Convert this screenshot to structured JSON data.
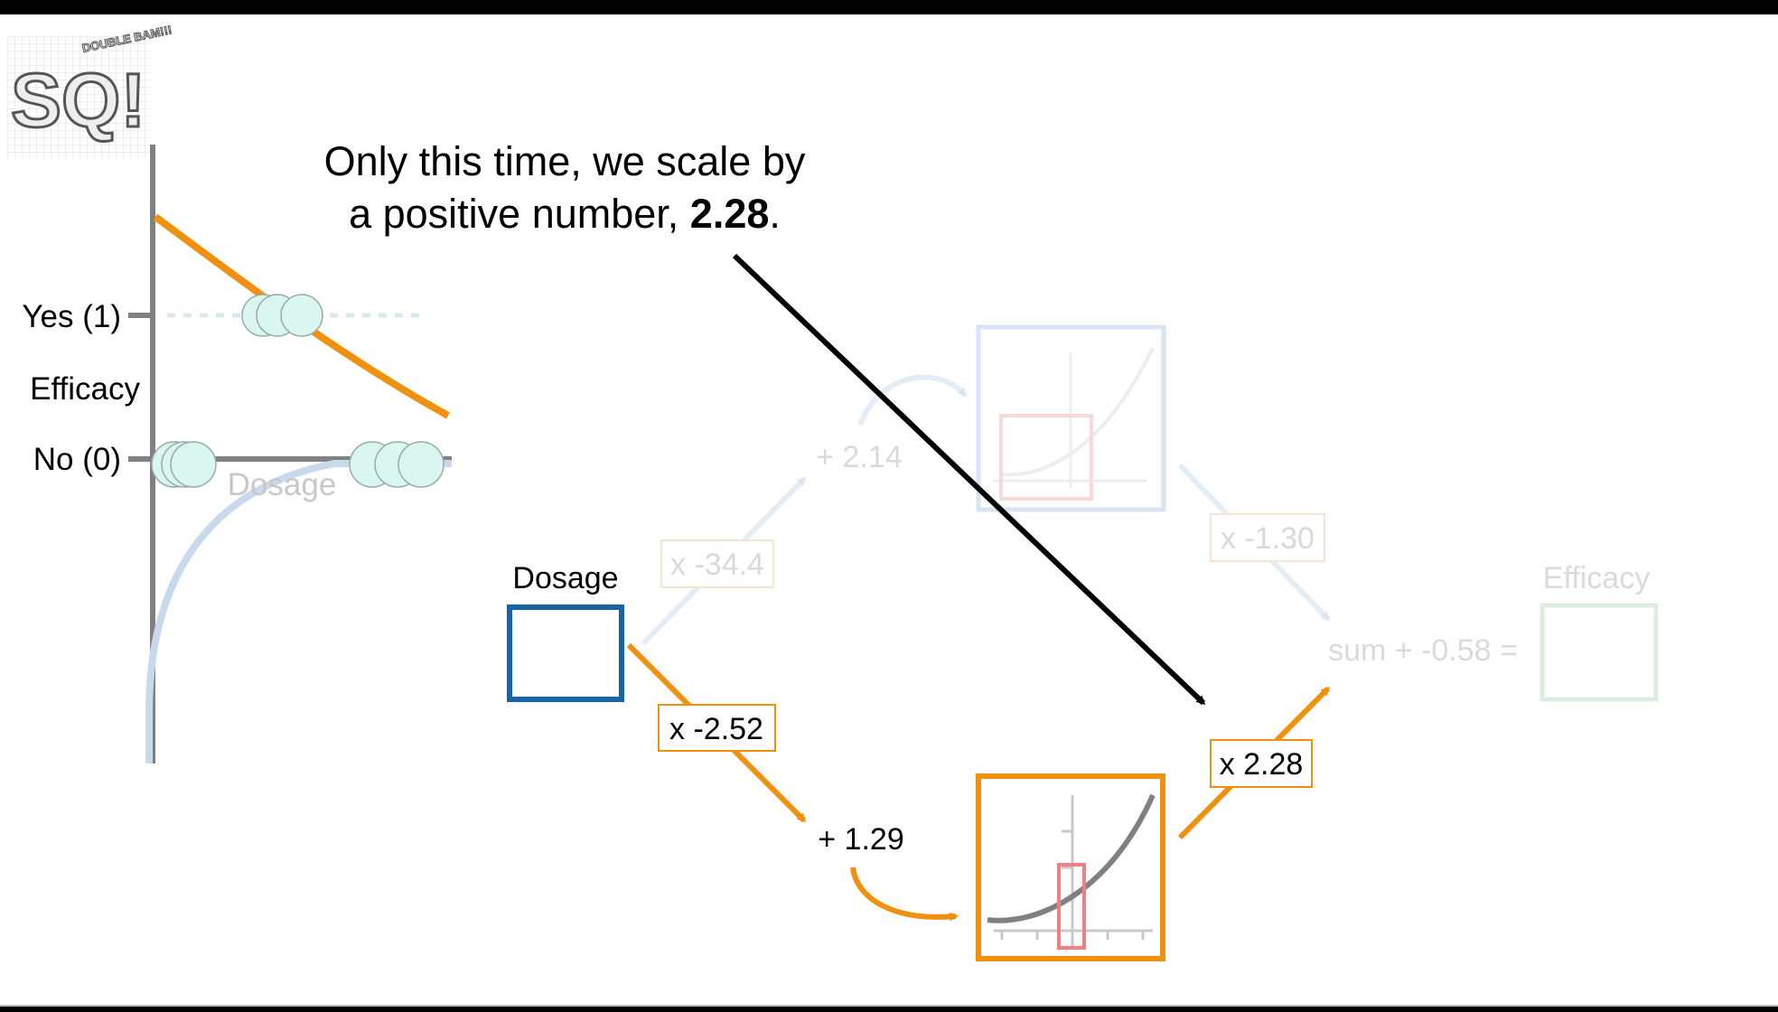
{
  "logo": {
    "text_big": "SQ!",
    "text_small": "DOUBLE BAM!!!"
  },
  "caption": {
    "line1": "Only this time, we scale by",
    "line2_prefix": "a positive number, ",
    "line2_bold": "2.28",
    "line2_suffix": "."
  },
  "plot": {
    "y_tick_top": "Yes (1)",
    "y_tick_bottom": "No (0)",
    "y_label": "Efficacy",
    "x_label": "Dosage"
  },
  "network": {
    "input_label": "Dosage",
    "output_label": "Efficacy",
    "top_weight": "x -34.4",
    "top_bias": "+ 2.14",
    "top_out_weight": "x -1.30",
    "bottom_weight": "x -2.52",
    "bottom_bias": "+ 1.29",
    "bottom_out_weight": "x 2.28",
    "sum_text": "sum + -0.58 ="
  },
  "colors": {
    "orange": "#F0900F",
    "blue": "#1565A8",
    "faded_blue": "#C8D9EC",
    "faded_green": "#DCEEDD",
    "faded_text": "#D4D4D4",
    "point_fill": "#D9F7F0",
    "pink": "#F08080"
  }
}
